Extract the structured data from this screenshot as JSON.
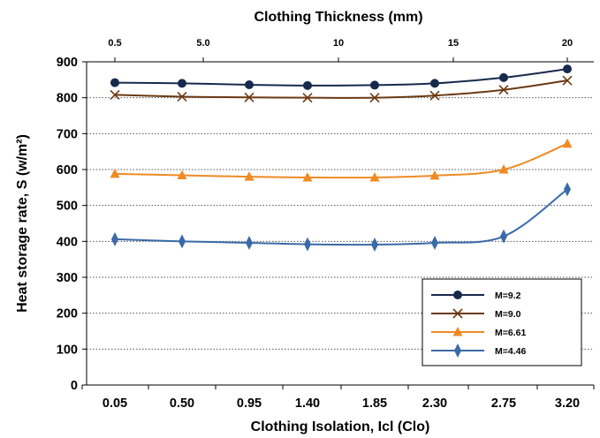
{
  "chart_data": {
    "type": "line",
    "xlabel": "Clothing Isolation, Icl (Clo)",
    "ylabel": "Heat storage rate, S (w/m²)",
    "top_axis_label": "Clothing Thickness (mm)",
    "x": [
      "0.05",
      "0.50",
      "0.95",
      "1.40",
      "1.85",
      "2.30",
      "2.75",
      "3.20"
    ],
    "top_ticks": [
      "0.5",
      "5.0",
      "10",
      "15",
      "20"
    ],
    "ylim": [
      0,
      900
    ],
    "yticks": [
      0,
      100,
      200,
      300,
      400,
      500,
      600,
      700,
      800,
      900
    ],
    "grid": "horizontal-dotted",
    "legend_position": "bottom-right",
    "series": [
      {
        "name": "M=9.2",
        "values": [
          842,
          840,
          836,
          834,
          835,
          840,
          856,
          880
        ],
        "color": "#17294d",
        "marker": "circle"
      },
      {
        "name": "M=9.0",
        "values": [
          808,
          803,
          801,
          800,
          800,
          806,
          822,
          848
        ],
        "color": "#6b3a14",
        "marker": "x"
      },
      {
        "name": "M=6.61",
        "values": [
          588,
          584,
          580,
          578,
          578,
          583,
          600,
          672
        ],
        "color": "#f08a24",
        "marker": "triangle"
      },
      {
        "name": "M=4.46",
        "values": [
          406,
          400,
          396,
          392,
          391,
          396,
          414,
          545
        ],
        "color": "#3a6aa8",
        "marker": "diamond"
      }
    ]
  }
}
